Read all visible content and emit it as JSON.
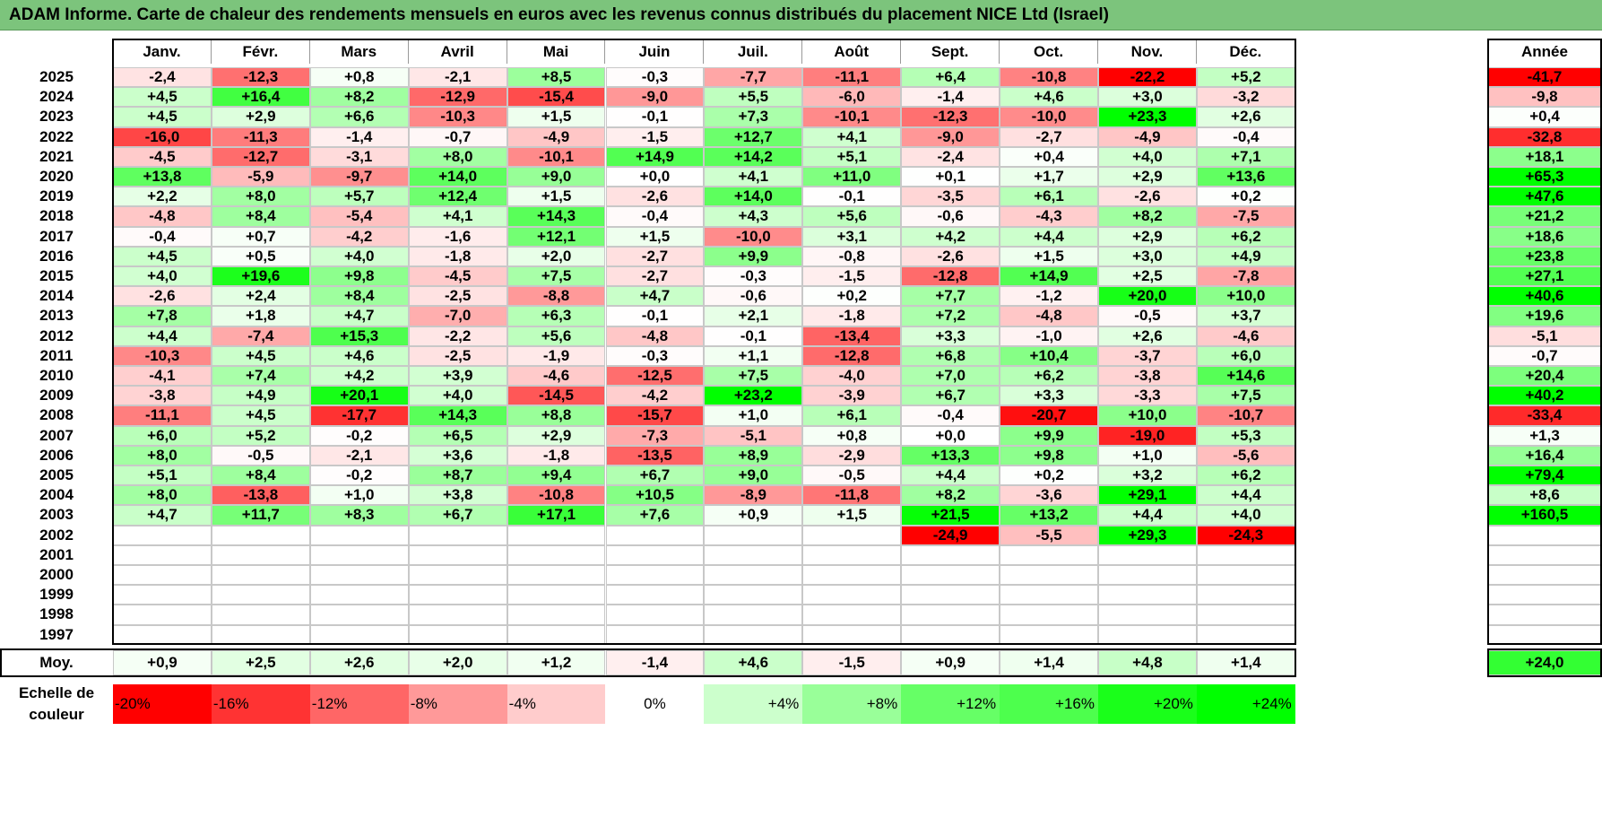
{
  "title": "ADAM Informe. Carte de chaleur des rendements mensuels en euros avec les revenus connus distribués du placement NICE Ltd (Israel)",
  "chart_data": {
    "type": "heatmap",
    "months": [
      "Janv.",
      "Févr.",
      "Mars",
      "Avril",
      "Mai",
      "Juin",
      "Juil.",
      "Août",
      "Sept.",
      "Oct.",
      "Nov.",
      "Déc."
    ],
    "year_header": "Année",
    "average_label": "Moy.",
    "rows": [
      {
        "year": "2025",
        "values": [
          "-2,4",
          "-12,3",
          "+0,8",
          "-2,1",
          "+8,5",
          "-0,3",
          "-7,7",
          "-11,1",
          "+6,4",
          "-10,8",
          "-22,2",
          "+5,2"
        ],
        "total": "-41,7"
      },
      {
        "year": "2024",
        "values": [
          "+4,5",
          "+16,4",
          "+8,2",
          "-12,9",
          "-15,4",
          "-9,0",
          "+5,5",
          "-6,0",
          "-1,4",
          "+4,6",
          "+3,0",
          "-3,2"
        ],
        "total": "-9,8"
      },
      {
        "year": "2023",
        "values": [
          "+4,5",
          "+2,9",
          "+6,6",
          "-10,3",
          "+1,5",
          "-0,1",
          "+7,3",
          "-10,1",
          "-12,3",
          "-10,0",
          "+23,3",
          "+2,6"
        ],
        "total": "+0,4"
      },
      {
        "year": "2022",
        "values": [
          "-16,0",
          "-11,3",
          "-1,4",
          "-0,7",
          "-4,9",
          "-1,5",
          "+12,7",
          "+4,1",
          "-9,0",
          "-2,7",
          "-4,9",
          "-0,4"
        ],
        "total": "-32,8"
      },
      {
        "year": "2021",
        "values": [
          "-4,5",
          "-12,7",
          "-3,1",
          "+8,0",
          "-10,1",
          "+14,9",
          "+14,2",
          "+5,1",
          "-2,4",
          "+0,4",
          "+4,0",
          "+7,1"
        ],
        "total": "+18,1"
      },
      {
        "year": "2020",
        "values": [
          "+13,8",
          "-5,9",
          "-9,7",
          "+14,0",
          "+9,0",
          "+0,0",
          "+4,1",
          "+11,0",
          "+0,1",
          "+1,7",
          "+2,9",
          "+13,6"
        ],
        "total": "+65,3"
      },
      {
        "year": "2019",
        "values": [
          "+2,2",
          "+8,0",
          "+5,7",
          "+12,4",
          "+1,5",
          "-2,6",
          "+14,0",
          "-0,1",
          "-3,5",
          "+6,1",
          "-2,6",
          "+0,2"
        ],
        "total": "+47,6"
      },
      {
        "year": "2018",
        "values": [
          "-4,8",
          "+8,4",
          "-5,4",
          "+4,1",
          "+14,3",
          "-0,4",
          "+4,3",
          "+5,6",
          "-0,6",
          "-4,3",
          "+8,2",
          "-7,5"
        ],
        "total": "+21,2"
      },
      {
        "year": "2017",
        "values": [
          "-0,4",
          "+0,7",
          "-4,2",
          "-1,6",
          "+12,1",
          "+1,5",
          "-10,0",
          "+3,1",
          "+4,2",
          "+4,4",
          "+2,9",
          "+6,2"
        ],
        "total": "+18,6"
      },
      {
        "year": "2016",
        "values": [
          "+4,5",
          "+0,5",
          "+4,0",
          "-1,8",
          "+2,0",
          "-2,7",
          "+9,9",
          "-0,8",
          "-2,6",
          "+1,5",
          "+3,0",
          "+4,9"
        ],
        "total": "+23,8"
      },
      {
        "year": "2015",
        "values": [
          "+4,0",
          "+19,6",
          "+9,8",
          "-4,5",
          "+7,5",
          "-2,7",
          "-0,3",
          "-1,5",
          "-12,8",
          "+14,9",
          "+2,5",
          "-7,8"
        ],
        "total": "+27,1"
      },
      {
        "year": "2014",
        "values": [
          "-2,6",
          "+2,4",
          "+8,4",
          "-2,5",
          "-8,8",
          "+4,7",
          "-0,6",
          "+0,2",
          "+7,7",
          "-1,2",
          "+20,0",
          "+10,0"
        ],
        "total": "+40,6"
      },
      {
        "year": "2013",
        "values": [
          "+7,8",
          "+1,8",
          "+4,7",
          "-7,0",
          "+6,3",
          "-0,1",
          "+2,1",
          "-1,8",
          "+7,2",
          "-4,8",
          "-0,5",
          "+3,7"
        ],
        "total": "+19,6"
      },
      {
        "year": "2012",
        "values": [
          "+4,4",
          "-7,4",
          "+15,3",
          "-2,2",
          "+5,6",
          "-4,8",
          "-0,1",
          "-13,4",
          "+3,3",
          "-1,0",
          "+2,6",
          "-4,6"
        ],
        "total": "-5,1"
      },
      {
        "year": "2011",
        "values": [
          "-10,3",
          "+4,5",
          "+4,6",
          "-2,5",
          "-1,9",
          "-0,3",
          "+1,1",
          "-12,8",
          "+6,8",
          "+10,4",
          "-3,7",
          "+6,0"
        ],
        "total": "-0,7"
      },
      {
        "year": "2010",
        "values": [
          "-4,1",
          "+7,4",
          "+4,2",
          "+3,9",
          "-4,6",
          "-12,5",
          "+7,5",
          "-4,0",
          "+7,0",
          "+6,2",
          "-3,8",
          "+14,6"
        ],
        "total": "+20,4"
      },
      {
        "year": "2009",
        "values": [
          "-3,8",
          "+4,9",
          "+20,1",
          "+4,0",
          "-14,5",
          "-4,2",
          "+23,2",
          "-3,9",
          "+6,7",
          "+3,3",
          "-3,3",
          "+7,5"
        ],
        "total": "+40,2"
      },
      {
        "year": "2008",
        "values": [
          "-11,1",
          "+4,5",
          "-17,7",
          "+14,3",
          "+8,8",
          "-15,7",
          "+1,0",
          "+6,1",
          "-0,4",
          "-20,7",
          "+10,0",
          "-10,7"
        ],
        "total": "-33,4"
      },
      {
        "year": "2007",
        "values": [
          "+6,0",
          "+5,2",
          "-0,2",
          "+6,5",
          "+2,9",
          "-7,3",
          "-5,1",
          "+0,8",
          "+0,0",
          "+9,9",
          "-19,0",
          "+5,3"
        ],
        "total": "+1,3"
      },
      {
        "year": "2006",
        "values": [
          "+8,0",
          "-0,5",
          "-2,1",
          "+3,6",
          "-1,8",
          "-13,5",
          "+8,9",
          "-2,9",
          "+13,3",
          "+9,8",
          "+1,0",
          "-5,6"
        ],
        "total": "+16,4"
      },
      {
        "year": "2005",
        "values": [
          "+5,1",
          "+8,4",
          "-0,2",
          "+8,7",
          "+9,4",
          "+6,7",
          "+9,0",
          "-0,5",
          "+4,4",
          "+0,2",
          "+3,2",
          "+6,2"
        ],
        "total": "+79,4"
      },
      {
        "year": "2004",
        "values": [
          "+8,0",
          "-13,8",
          "+1,0",
          "+3,8",
          "-10,8",
          "+10,5",
          "-8,9",
          "-11,8",
          "+8,2",
          "-3,6",
          "+29,1",
          "+4,4"
        ],
        "total": "+8,6"
      },
      {
        "year": "2003",
        "values": [
          "+4,7",
          "+11,7",
          "+8,3",
          "+6,7",
          "+17,1",
          "+7,6",
          "+0,9",
          "+1,5",
          "+21,5",
          "+13,2",
          "+4,4",
          "+4,0"
        ],
        "total": "+160,5"
      },
      {
        "year": "2002",
        "values": [
          "",
          "",
          "",
          "",
          "",
          "",
          "",
          "",
          "-24,9",
          "-5,5",
          "+29,3",
          "-24,3"
        ],
        "total": ""
      },
      {
        "year": "2001",
        "values": [
          "",
          "",
          "",
          "",
          "",
          "",
          "",
          "",
          "",
          "",
          "",
          ""
        ],
        "total": ""
      },
      {
        "year": "2000",
        "values": [
          "",
          "",
          "",
          "",
          "",
          "",
          "",
          "",
          "",
          "",
          "",
          ""
        ],
        "total": ""
      },
      {
        "year": "1999",
        "values": [
          "",
          "",
          "",
          "",
          "",
          "",
          "",
          "",
          "",
          "",
          "",
          ""
        ],
        "total": ""
      },
      {
        "year": "1998",
        "values": [
          "",
          "",
          "",
          "",
          "",
          "",
          "",
          "",
          "",
          "",
          "",
          ""
        ],
        "total": ""
      },
      {
        "year": "1997",
        "values": [
          "",
          "",
          "",
          "",
          "",
          "",
          "",
          "",
          "",
          "",
          "",
          ""
        ],
        "total": ""
      }
    ],
    "averages": [
      "+0,9",
      "+2,5",
      "+2,6",
      "+2,0",
      "+1,2",
      "-1,4",
      "+4,6",
      "-1,5",
      "+0,9",
      "+1,4",
      "+4,8",
      "+1,4"
    ],
    "average_total": "+24,0",
    "scale_label": "Echelle de couleur",
    "scale": [
      {
        "label": "-20%",
        "color": "#ff0000"
      },
      {
        "label": "-16%",
        "color": "#ff3333"
      },
      {
        "label": "-12%",
        "color": "#ff6666"
      },
      {
        "label": "-8%",
        "color": "#ff9999"
      },
      {
        "label": "-4%",
        "color": "#ffcccc"
      },
      {
        "label": "0%",
        "color": "#ffffff"
      },
      {
        "label": "+4%",
        "color": "#ccffcc"
      },
      {
        "label": "+8%",
        "color": "#99ff99"
      },
      {
        "label": "+12%",
        "color": "#66ff66"
      },
      {
        "label": "+16%",
        "color": "#4dff4d"
      },
      {
        "label": "+20%",
        "color": "#1aff1a"
      },
      {
        "label": "+24%",
        "color": "#00ff00"
      }
    ]
  }
}
